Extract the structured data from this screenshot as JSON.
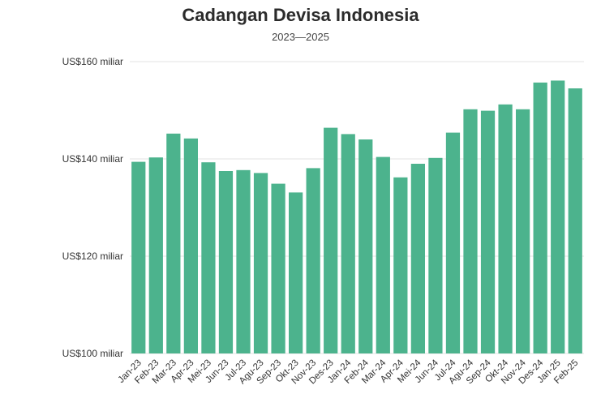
{
  "chart_data": {
    "type": "bar",
    "title": "Cadangan Devisa Indonesia",
    "subtitle": "2023—2025",
    "xlabel": "",
    "ylabel": "",
    "ylim": [
      100,
      160
    ],
    "yticks": [
      100,
      120,
      140,
      160
    ],
    "ytick_labels": [
      "US$100 miliar",
      "US$120 miliar",
      "US$140 miliar",
      "US$160 miliar"
    ],
    "grid": true,
    "bar_color": "#4cb38d",
    "categories": [
      "Jan-23",
      "Feb-23",
      "Mar-23",
      "Apr-23",
      "Mei-23",
      "Jun-23",
      "Jul-23",
      "Agu-23",
      "Sep-23",
      "Okt-23",
      "Nov-23",
      "Des-23",
      "Jan-24",
      "Feb-24",
      "Mar-24",
      "Apr-24",
      "Mei-24",
      "Jun-24",
      "Jul-24",
      "Agu-24",
      "Sep-24",
      "Okt-24",
      "Nov-24",
      "Des-24",
      "Jan-25",
      "Feb-25"
    ],
    "values": [
      139.4,
      140.3,
      145.2,
      144.2,
      139.3,
      137.5,
      137.7,
      137.1,
      134.9,
      133.1,
      138.1,
      146.4,
      145.1,
      144.0,
      140.4,
      136.2,
      139.0,
      140.2,
      145.4,
      150.2,
      149.9,
      151.2,
      150.2,
      155.7,
      156.1,
      154.5
    ]
  }
}
